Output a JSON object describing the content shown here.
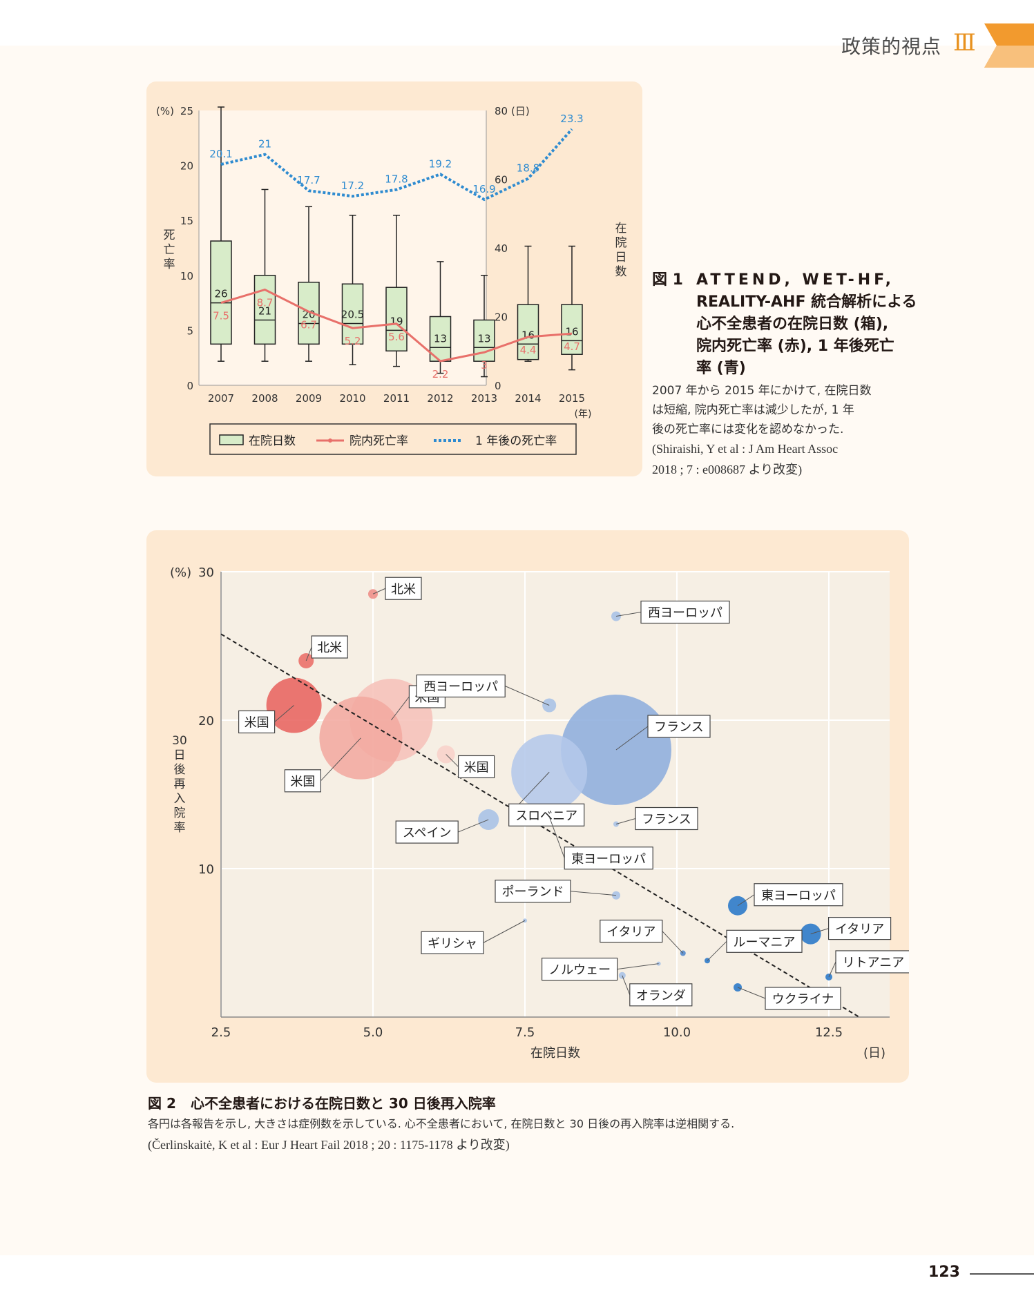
{
  "header": {
    "title": "政策的視点",
    "section": "Ⅲ",
    "accent_color": "#f29a2e"
  },
  "page_number": "123",
  "figure1": {
    "chart_data": {
      "type": "box+line",
      "categories": [
        "2007",
        "2008",
        "2009",
        "2010",
        "2011",
        "2012",
        "2013",
        "2014",
        "2015"
      ],
      "x_unit": "(年)",
      "y_left": {
        "unit": "(%)",
        "label": "死亡率",
        "ticks": [
          "0",
          "5",
          "10",
          "15",
          "20",
          "25"
        ],
        "range": [
          0,
          25
        ]
      },
      "y_right": {
        "unit": "(日)",
        "label": "在院日数",
        "ticks": [
          "0",
          "20",
          "40",
          "60",
          "80"
        ],
        "range": [
          0,
          80
        ]
      },
      "boxes": [
        {
          "min": 7,
          "q1": 12,
          "median": 24,
          "q3": 42,
          "max": 81,
          "label": "26"
        },
        {
          "min": 7,
          "q1": 12,
          "median": 19,
          "q3": 32,
          "max": 57,
          "label": "21"
        },
        {
          "min": 7,
          "q1": 12,
          "median": 18,
          "q3": 30,
          "max": 52,
          "label": "20"
        },
        {
          "min": 6,
          "q1": 12,
          "median": 18,
          "q3": 29.5,
          "max": 49.5,
          "label": "20.5"
        },
        {
          "min": 5.5,
          "q1": 10,
          "median": 16,
          "q3": 28.5,
          "max": 49.5,
          "label": "19"
        },
        {
          "min": 3.5,
          "q1": 7,
          "median": 11,
          "q3": 20,
          "max": 36,
          "label": "13"
        },
        {
          "min": 2.5,
          "q1": 7,
          "median": 11,
          "q3": 19,
          "max": 32,
          "label": "13"
        },
        {
          "min": 7,
          "q1": 7.5,
          "median": 12,
          "q3": 23.5,
          "max": 40.5,
          "label": "16"
        },
        {
          "min": 4.5,
          "q1": 9,
          "median": 13,
          "q3": 23.5,
          "max": 40.5,
          "label": "16"
        }
      ],
      "series": [
        {
          "name": "院内死亡率",
          "color": "#e8706a",
          "values": [
            7.5,
            8.7,
            6.7,
            5.2,
            5.6,
            2.2,
            3.0,
            4.4,
            4.7
          ],
          "labels": [
            "7.5",
            "8.7",
            "6.7",
            "5.2",
            "5.6",
            "2.2",
            "3",
            "4.4",
            "4.7"
          ]
        },
        {
          "name": "1 年後の死亡率",
          "color": "#2e8bd0",
          "values": [
            20.1,
            21,
            17.7,
            17.2,
            17.8,
            19.2,
            16.9,
            18.8,
            23.3
          ],
          "labels": [
            "20.1",
            "21",
            "17.7",
            "17.2",
            "17.8",
            "19.2",
            "16.9",
            "18.8",
            "23.3"
          ]
        }
      ],
      "legend": [
        "在院日数",
        "院内死亡率",
        "1 年後の死亡率"
      ]
    },
    "caption": {
      "label": "図 1",
      "title_lines": [
        "ATTEND, WET-HF,",
        "REALITY-AHF 統合解析による",
        "心不全患者の在院日数 (箱),",
        "院内死亡率 (赤), 1 年後死亡",
        "率 (青)"
      ],
      "body_lines": [
        "2007 年から 2015 年にかけて, 在院日数",
        "は短縮, 院内死亡率は減少したが, 1 年",
        "後の死亡率には変化を認めなかった."
      ],
      "citation_lines": [
        "(Shiraishi, Y et al : J Am Heart Assoc",
        "2018 ; 7 : e008687 より改変)"
      ]
    }
  },
  "figure2": {
    "chart_data": {
      "type": "scatter",
      "xlabel": "在院日数",
      "x_unit": "(日)",
      "ylabel": "30 日後再入院率",
      "y_unit": "(%)",
      "xlim": [
        2.5,
        13.5
      ],
      "ylim": [
        0,
        30
      ],
      "x_ticks": [
        "2.5",
        "5.0",
        "7.5",
        "10.0",
        "12.5"
      ],
      "y_ticks": [
        "10",
        "20",
        "30"
      ],
      "trendline": {
        "x": [
          2.5,
          13.0
        ],
        "y": [
          25.8,
          0
        ]
      },
      "points": [
        {
          "label": "北米",
          "x": 5.0,
          "y": 28.5,
          "size": 7,
          "color": "#ee8d86"
        },
        {
          "label": "北米",
          "x": 3.9,
          "y": 24.0,
          "size": 11,
          "color": "#ea6d67"
        },
        {
          "label": "米国",
          "x": 3.7,
          "y": 21.0,
          "size": 40,
          "color": "#e86460"
        },
        {
          "label": "米国",
          "x": 5.3,
          "y": 20.0,
          "size": 60,
          "color": "#f6c2ba"
        },
        {
          "label": "米国",
          "x": 4.8,
          "y": 18.8,
          "size": 60,
          "color": "#f2aaa0"
        },
        {
          "label": "米国",
          "x": 6.2,
          "y": 17.7,
          "size": 13,
          "color": "#f8d1ca"
        },
        {
          "label": "西ヨーロッパ",
          "x": 9.0,
          "y": 27.0,
          "size": 7,
          "color": "#a7c2e6"
        },
        {
          "label": "西ヨーロッパ",
          "x": 7.9,
          "y": 21.0,
          "size": 10,
          "color": "#a7c2e6"
        },
        {
          "label": "フランス",
          "x": 9.0,
          "y": 18.0,
          "size": 80,
          "color": "#8eaedd"
        },
        {
          "label": "スロベニア",
          "x": 7.9,
          "y": 16.5,
          "size": 55,
          "color": "#b4c8ea"
        },
        {
          "label": "スペイン",
          "x": 6.9,
          "y": 13.3,
          "size": 15,
          "color": "#a7c2e6"
        },
        {
          "label": "東ヨーロッパ",
          "x": 7.9,
          "y": 13.5,
          "size": 0,
          "color": "#b4c8ea"
        },
        {
          "label": "フランス",
          "x": 9.0,
          "y": 13.0,
          "size": 4,
          "color": "#a7c2e6"
        },
        {
          "label": "ポーランド",
          "x": 9.0,
          "y": 8.2,
          "size": 6,
          "color": "#a7c2e6"
        },
        {
          "label": "ギリシャ",
          "x": 7.5,
          "y": 6.5,
          "size": 3,
          "color": "#a7c2e6"
        },
        {
          "label": "イタリア",
          "x": 10.1,
          "y": 4.3,
          "size": 4,
          "color": "#4e86cc"
        },
        {
          "label": "ノルウェー",
          "x": 9.7,
          "y": 3.6,
          "size": 3,
          "color": "#a7c2e6"
        },
        {
          "label": "オランダ",
          "x": 9.1,
          "y": 2.8,
          "size": 5,
          "color": "#a7c2e6"
        },
        {
          "label": "東ヨーロッパ",
          "x": 11.0,
          "y": 7.5,
          "size": 14,
          "color": "#2877c8"
        },
        {
          "label": "イタリア",
          "x": 12.2,
          "y": 5.6,
          "size": 15,
          "color": "#2877c8"
        },
        {
          "label": "ルーマニア",
          "x": 10.5,
          "y": 3.8,
          "size": 4,
          "color": "#2877c8"
        },
        {
          "label": "リトアニア",
          "x": 12.5,
          "y": 2.7,
          "size": 5,
          "color": "#2877c8"
        },
        {
          "label": "ウクライナ",
          "x": 11.0,
          "y": 2.0,
          "size": 6,
          "color": "#2877c8"
        }
      ]
    },
    "caption": {
      "label": "図 2",
      "title": "心不全患者における在院日数と 30 日後再入院率",
      "body": "各円は各報告を示し, 大きさは症例数を示している. 心不全患者において, 在院日数と 30 日後の再入院率は逆相関する.",
      "citation": "(Čerlinskaitė, K et al : Eur J Heart Fail 2018 ; 20 : 1175-1178 より改変)"
    }
  }
}
